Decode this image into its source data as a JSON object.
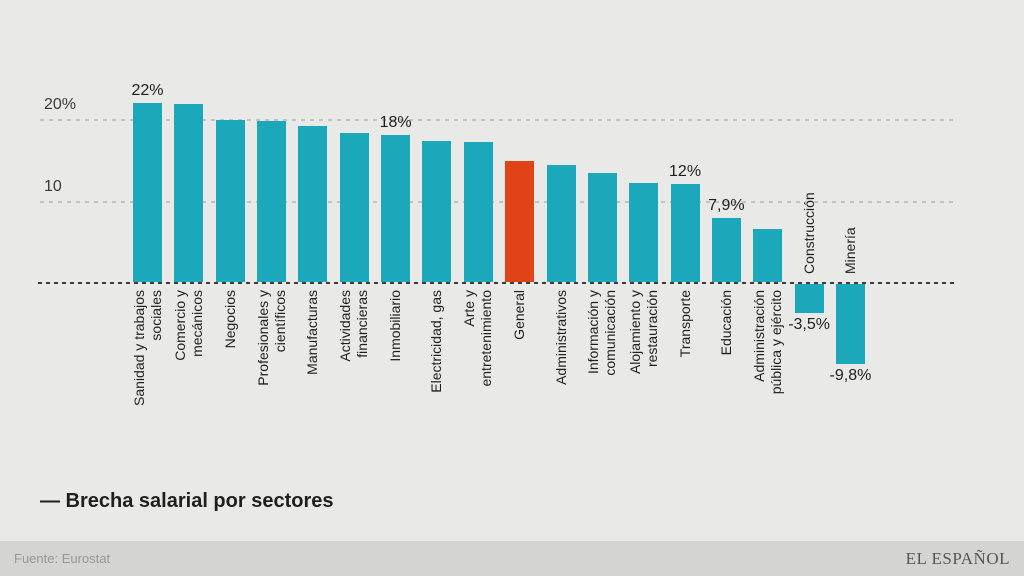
{
  "title": "— Brecha salarial por sectores",
  "footer": {
    "source": "Fuente: Eurostat",
    "brand": "EL ESPAÑOL"
  },
  "colors": {
    "background": "#e9e9e7",
    "footer_background": "#d4d4d2",
    "bar": "#1aa8ba",
    "highlight_bar": "#e04318",
    "grid_line": "#c3c3c1",
    "zero_line": "#3b3b3b",
    "text": "#1f1f1f",
    "axis_text": "#3a3a3a",
    "muted_text": "#979795",
    "brand_text": "#565656"
  },
  "chart_data": {
    "type": "bar",
    "title": "Brecha salarial por sectores",
    "unit": "%",
    "ylim": [
      -12,
      24
    ],
    "grid": "dashed horizontal",
    "y_ticks": [
      {
        "label": "20%",
        "value": 20
      },
      {
        "label": "10",
        "value": 10
      }
    ],
    "zero_axis": "dashed",
    "highlight_meaning": "General (overall) bar highlighted in red",
    "bars": [
      {
        "category": "Sanidad y trabajos sociales",
        "label_lines": [
          "Sanidad y trabajos",
          "sociales"
        ],
        "value": 22,
        "annotation": "22%"
      },
      {
        "category": "Comercio y mecánicos",
        "label_lines": [
          "Comercio y",
          "mecánicos"
        ],
        "value": 21.8
      },
      {
        "category": "Negocios",
        "label_lines": [
          "Negocios"
        ],
        "value": 19.9
      },
      {
        "category": "Profesionales y científicos",
        "label_lines": [
          "Profesionales y",
          "científicos"
        ],
        "value": 19.8
      },
      {
        "category": "Manufacturas",
        "label_lines": [
          "Manufacturas"
        ],
        "value": 19.2
      },
      {
        "category": "Actividades financieras",
        "label_lines": [
          "Actividades",
          "financieras"
        ],
        "value": 18.3
      },
      {
        "category": "Inmobiliario",
        "label_lines": [
          "Inmobiliario"
        ],
        "value": 18,
        "annotation": "18%"
      },
      {
        "category": "Electricidad, gas",
        "label_lines": [
          "Electricidad, gas"
        ],
        "value": 17.3
      },
      {
        "category": "Arte y entretenimiento",
        "label_lines": [
          "Arte y",
          "entretenimiento"
        ],
        "value": 17.2
      },
      {
        "category": "General",
        "label_lines": [
          "General"
        ],
        "value": 14.8,
        "highlight": true
      },
      {
        "category": "Administrativos",
        "label_lines": [
          "Administrativos"
        ],
        "value": 14.4
      },
      {
        "category": "Información y comunicación",
        "label_lines": [
          "Información y",
          "comunicación"
        ],
        "value": 13.4
      },
      {
        "category": "Alojamiento y restauración",
        "label_lines": [
          "Alojamiento y",
          "restauración"
        ],
        "value": 12.2
      },
      {
        "category": "Transporte",
        "label_lines": [
          "Transporte"
        ],
        "value": 12,
        "annotation": "12%"
      },
      {
        "category": "Educación",
        "label_lines": [
          "Educación"
        ],
        "value": 7.9,
        "annotation": "7,9%"
      },
      {
        "category": "Administración pública y ejército",
        "label_lines": [
          "Administración",
          "pública y ejército"
        ],
        "value": 6.5
      },
      {
        "category": "Construcción",
        "label_lines": [
          "Construcción"
        ],
        "value": -3.5,
        "annotation": "-3,5%"
      },
      {
        "category": "Minería",
        "label_lines": [
          "Minería"
        ],
        "value": -9.8,
        "annotation": "-9,8%"
      }
    ]
  }
}
